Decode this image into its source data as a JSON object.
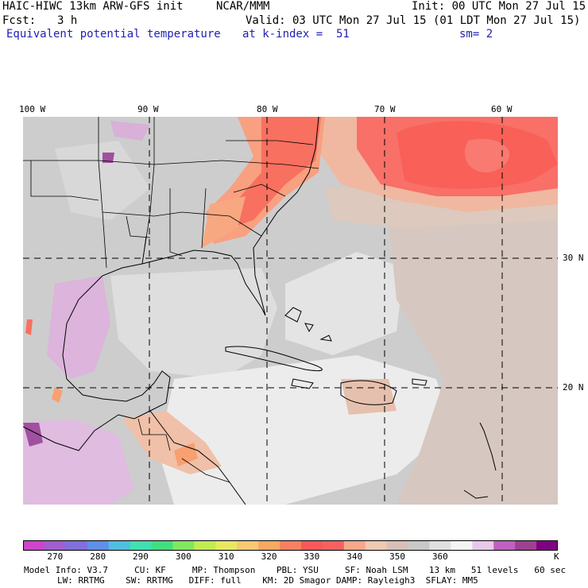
{
  "header": {
    "model": "HAIC-HIWC 13km ARW-GFS init",
    "org": "NCAR/MMM",
    "init": "Init: 00 UTC Mon 27 Jul 15",
    "fcst_label": "Fcst:",
    "fcst_value": "3 h",
    "valid": "Valid: 03 UTC Mon 27 Jul 15 (01 LDT Mon 27 Jul 15)",
    "field": "Equivalent potential temperature",
    "level": "at k-index =  51",
    "smooth": "sm= 2"
  },
  "map": {
    "lon_labels": [
      "100 W",
      "90 W",
      "80 W",
      "70 W",
      "60 W"
    ],
    "lat_labels": [
      "30 N",
      "20 N"
    ]
  },
  "colorbar": {
    "unit": "K",
    "tick_labels": [
      "270",
      "280",
      "290",
      "300",
      "310",
      "320",
      "330",
      "340",
      "350",
      "360"
    ],
    "colors": [
      "#cc44cc",
      "#9f5fcf",
      "#7f6fdf",
      "#5f8fe8",
      "#4fbfe0",
      "#40e0b0",
      "#40e080",
      "#80e860",
      "#c0ec50",
      "#e8e860",
      "#f8c870",
      "#f8a860",
      "#f88060",
      "#f85858",
      "#f86060",
      "#f8a888",
      "#f0c8b0",
      "#d8c0b8",
      "#c8c8c8",
      "#e0e0e0",
      "#f4f4f4",
      "#e8c8e8",
      "#c060c0",
      "#a04090",
      "#800080"
    ]
  },
  "model_info": {
    "line1": "Model Info: V3.7     CU: KF     MP: Thompson    PBL: YSU     SF: Noah LSM    13 km   51 levels   60 sec",
    "line2": "LW: RRTMG    SW: RRTMG   DIFF: full    KM: 2D Smagor DAMP: Rayleigh3  SFLAY: MM5"
  }
}
